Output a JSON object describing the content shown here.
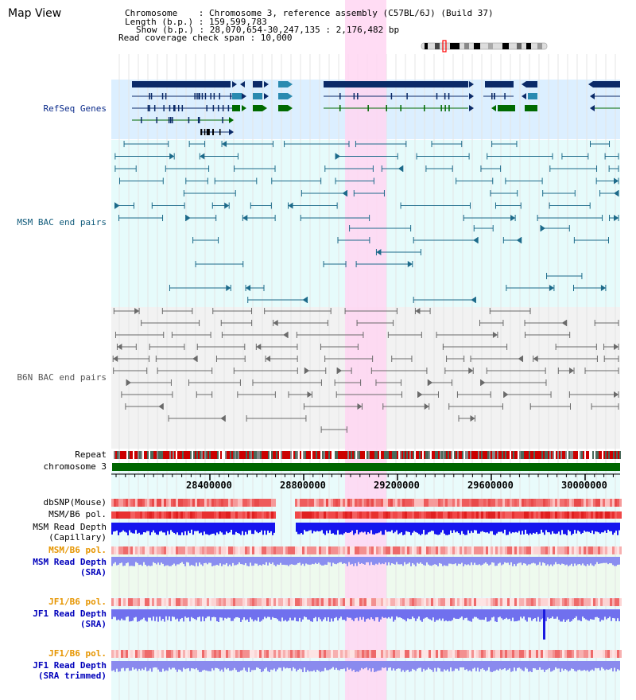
{
  "page": {
    "title": "Map View"
  },
  "header": {
    "chromosome_line": "Chromosome    : Chromosome 3, reference assembly (C57BL/6J) (Build 37)",
    "length_line": "Length (b.p.) : 159,599,783",
    "show_line": "Show (b.p.) : 28,070,654-30,247,135 : 2,176,482 bp",
    "coverage_line": "Read coverage check span : 10,000"
  },
  "tracks": {
    "refseq": {
      "label": "RefSeq Genes",
      "color": "#0a2a8a"
    },
    "msm_bac": {
      "label": "MSM BAC end pairs",
      "color": "#0f5a7a"
    },
    "b6n_bac": {
      "label": "B6N BAC end pairs",
      "color": "#555555"
    },
    "repeat": {
      "label": "Repeat"
    },
    "chromosome": {
      "label": "chromosome 3",
      "color": "#006600"
    },
    "dbsnp": {
      "label": "dbSNP(Mouse)"
    },
    "msm_b6_pol": {
      "label": "MSM/B6 pol."
    },
    "msm_depth_cap": {
      "label_line1": "MSM Read Depth",
      "label_line2": "(Capillary)"
    },
    "msm_b6_pol_sra": {
      "label": "MSM/B6 pol.",
      "color": "#e69500"
    },
    "msm_depth_sra": {
      "label_line1": "MSM Read Depth",
      "label_line2": "(SRA)"
    },
    "jf1_b6_pol": {
      "label": "JF1/B6 pol.",
      "color": "#e69500"
    },
    "jf1_depth_sra": {
      "label_line1": "JF1 Read Depth",
      "label_line2": "(SRA)"
    },
    "jf1_b6_pol_trim": {
      "label": "JF1/B6 pol.",
      "color": "#e69500"
    },
    "jf1_depth_trim": {
      "label_line1": "JF1 Read Depth",
      "label_line2": "(SRA trimmed)"
    }
  },
  "ruler": {
    "ticks": [
      "28400000",
      "28800000",
      "29200000",
      "29600000",
      "30000000"
    ]
  },
  "colors": {
    "highlight": "#ffd6f2",
    "refseq_bg": "#dcefff",
    "bac_bg": "#e6fbfb",
    "b6n_bg": "#f2f2f2",
    "depth": "#1a1aff"
  }
}
